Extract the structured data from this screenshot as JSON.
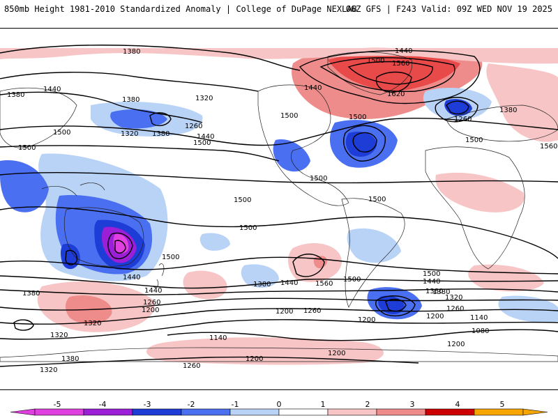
{
  "header": {
    "left_title": "850mb Height 1981-2010 Standardized Anomaly | College of DuPage NEXLAB",
    "right_title": "06Z GFS | F243 Valid: 09Z WED NOV 19 2025"
  },
  "map": {
    "variable": "850mb Height",
    "shading": "Standardized Anomaly",
    "contour_labels": [
      "1380",
      "1440",
      "1380",
      "1320",
      "1380",
      "1500",
      "1440",
      "1500",
      "1560",
      "1620",
      "1440",
      "1500",
      "1500",
      "1260",
      "1380",
      "1320",
      "1380",
      "1260",
      "1440",
      "1500",
      "1500",
      "1500",
      "1500",
      "1500",
      "1500",
      "1440",
      "1500",
      "1380",
      "1380",
      "1440",
      "1320",
      "1260",
      "1200",
      "1200",
      "1500",
      "1380",
      "1440",
      "1560",
      "1500",
      "1500",
      "1440",
      "1380",
      "1320",
      "1260",
      "1200",
      "1140",
      "1080",
      "1200",
      "1200",
      "1320",
      "1380",
      "1140",
      "1260",
      "1200",
      "1200",
      "1260",
      "1320",
      "1560"
    ],
    "colors": {
      "neg5": "#e040e0",
      "neg4": "#9b1fd6",
      "neg3": "#1e3cd6",
      "neg2": "#4a6ff0",
      "neg1": "#b9d3f7",
      "pos1": "#f7c5c5",
      "pos2": "#ee8c8c",
      "pos3": "#e84a4a",
      "pos4": "#cc0000",
      "pos5": "#f7a600"
    }
  },
  "colorbar": {
    "ticks": [
      "-5",
      "-4",
      "-3",
      "-2",
      "-1",
      "0",
      "1",
      "2",
      "3",
      "4",
      "5"
    ],
    "colors": [
      "#e040e0",
      "#9b1fd6",
      "#1e3cd6",
      "#4a6ff0",
      "#b9d3f7",
      "#ffffff",
      "#f7c5c5",
      "#ee8c8c",
      "#cc0000",
      "#f7a600"
    ]
  }
}
